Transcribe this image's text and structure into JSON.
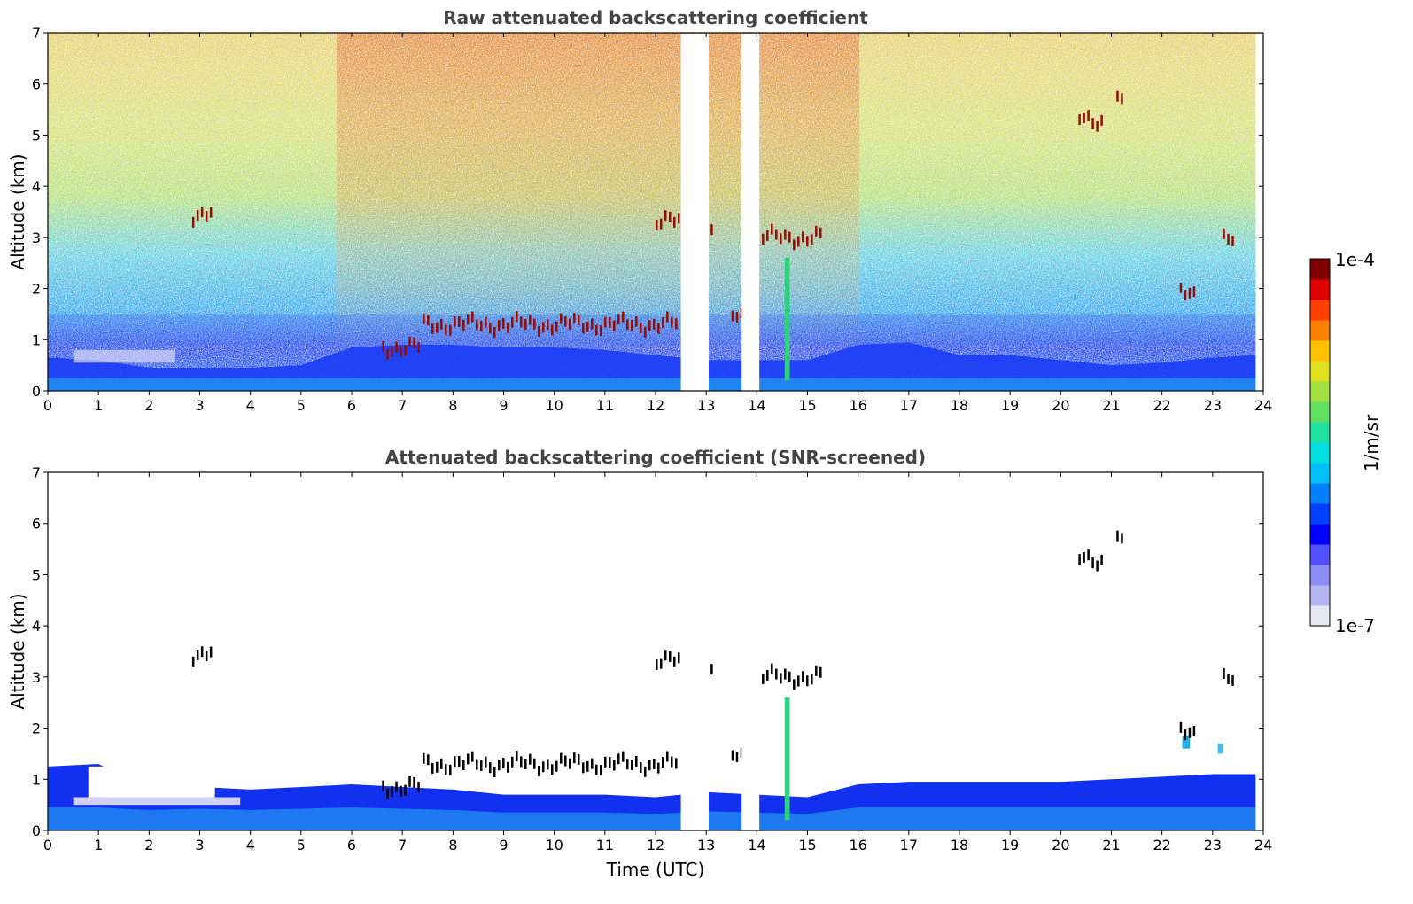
{
  "chart_data": [
    {
      "type": "heatmap",
      "title": "Raw attenuated backscattering coefficient",
      "xlabel": "",
      "ylabel": "Altitude (km)",
      "xlim": [
        0,
        24
      ],
      "ylim": [
        0,
        7
      ],
      "xticks": [
        "0",
        "1",
        "2",
        "3",
        "4",
        "5",
        "6",
        "7",
        "8",
        "9",
        "10",
        "11",
        "12",
        "13",
        "14",
        "15",
        "16",
        "17",
        "18",
        "19",
        "20",
        "21",
        "22",
        "23",
        "24"
      ],
      "yticks": [
        "0",
        "1",
        "2",
        "3",
        "4",
        "5",
        "6",
        "7"
      ],
      "data_gaps_utc": [
        [
          12.5,
          13.05
        ],
        [
          13.7,
          14.05
        ],
        [
          23.85,
          24
        ]
      ],
      "boundary_layer_top_km": [
        {
          "t": 0,
          "h": 0.65
        },
        {
          "t": 1,
          "h": 0.6
        },
        {
          "t": 2,
          "h": 0.45
        },
        {
          "t": 3,
          "h": 0.45
        },
        {
          "t": 4,
          "h": 0.45
        },
        {
          "t": 5,
          "h": 0.5
        },
        {
          "t": 6,
          "h": 0.85
        },
        {
          "t": 7,
          "h": 0.9
        },
        {
          "t": 8,
          "h": 0.9
        },
        {
          "t": 9,
          "h": 0.85
        },
        {
          "t": 10,
          "h": 0.85
        },
        {
          "t": 11,
          "h": 0.8
        },
        {
          "t": 12,
          "h": 0.7
        },
        {
          "t": 13,
          "h": 0.6
        },
        {
          "t": 14,
          "h": 0.6
        },
        {
          "t": 15,
          "h": 0.6
        },
        {
          "t": 16,
          "h": 0.9
        },
        {
          "t": 17,
          "h": 0.95
        },
        {
          "t": 18,
          "h": 0.7
        },
        {
          "t": 19,
          "h": 0.7
        },
        {
          "t": 20,
          "h": 0.6
        },
        {
          "t": 21,
          "h": 0.5
        },
        {
          "t": 22,
          "h": 0.55
        },
        {
          "t": 23,
          "h": 0.65
        },
        {
          "t": 23.85,
          "h": 0.7
        }
      ],
      "cloud_features": [
        {
          "t0": 2.85,
          "t1": 3.2,
          "h": 3.45
        },
        {
          "t0": 6.6,
          "t1": 7.3,
          "h": 0.85
        },
        {
          "t0": 7.4,
          "t1": 12.4,
          "h": 1.3
        },
        {
          "t0": 12.0,
          "t1": 12.5,
          "h": 3.3
        },
        {
          "t0": 13.0,
          "t1": 13.15,
          "h": 3.05
        },
        {
          "t0": 13.5,
          "t1": 13.7,
          "h": 1.5
        },
        {
          "t0": 14.1,
          "t1": 15.3,
          "h": 3.0
        },
        {
          "t0": 20.35,
          "t1": 20.8,
          "h": 5.3
        },
        {
          "t0": 21.1,
          "t1": 21.2,
          "h": 5.65
        },
        {
          "t0": 22.35,
          "t1": 22.65,
          "h": 1.9
        },
        {
          "t0": 23.2,
          "t1": 23.45,
          "h": 2.92
        }
      ]
    },
    {
      "type": "heatmap",
      "title": "Attenuated backscattering coefficient (SNR-screened)",
      "xlabel": "Time (UTC)",
      "ylabel": "Altitude (km)",
      "xlim": [
        0,
        24
      ],
      "ylim": [
        0,
        7
      ],
      "xticks": [
        "0",
        "1",
        "2",
        "3",
        "4",
        "5",
        "6",
        "7",
        "8",
        "9",
        "10",
        "11",
        "12",
        "13",
        "14",
        "15",
        "16",
        "17",
        "18",
        "19",
        "20",
        "21",
        "22",
        "23",
        "24"
      ],
      "yticks": [
        "0",
        "1",
        "2",
        "3",
        "4",
        "5",
        "6",
        "7"
      ],
      "data_gaps_utc": [
        [
          12.5,
          13.05
        ],
        [
          13.7,
          14.05
        ],
        [
          23.85,
          24
        ]
      ],
      "screened_top_km": [
        {
          "t": 0,
          "h": 1.25
        },
        {
          "t": 1,
          "h": 1.3
        },
        {
          "t": 2,
          "h": 0.8
        },
        {
          "t": 3,
          "h": 0.85
        },
        {
          "t": 4,
          "h": 0.8
        },
        {
          "t": 5,
          "h": 0.85
        },
        {
          "t": 6,
          "h": 0.9
        },
        {
          "t": 7,
          "h": 0.85
        },
        {
          "t": 8,
          "h": 0.8
        },
        {
          "t": 9,
          "h": 0.7
        },
        {
          "t": 10,
          "h": 0.7
        },
        {
          "t": 11,
          "h": 0.7
        },
        {
          "t": 12,
          "h": 0.65
        },
        {
          "t": 13,
          "h": 0.75
        },
        {
          "t": 14,
          "h": 0.7
        },
        {
          "t": 15,
          "h": 0.65
        },
        {
          "t": 16,
          "h": 0.9
        },
        {
          "t": 17,
          "h": 0.95
        },
        {
          "t": 18,
          "h": 0.95
        },
        {
          "t": 19,
          "h": 0.95
        },
        {
          "t": 20,
          "h": 0.95
        },
        {
          "t": 21,
          "h": 1.0
        },
        {
          "t": 22,
          "h": 1.05
        },
        {
          "t": 23,
          "h": 1.1
        },
        {
          "t": 23.85,
          "h": 1.1
        }
      ]
    }
  ],
  "colorbar": {
    "max_label": "1e-4",
    "min_label": "1e-7",
    "unit_label": "1/m/sr",
    "colors": [
      "#e6e6f5",
      "#b4b4f0",
      "#8c8cf5",
      "#5050ff",
      "#0000ff",
      "#0040ff",
      "#0080ff",
      "#00bfff",
      "#00e0e0",
      "#20e0a0",
      "#60e060",
      "#a0e040",
      "#e0e020",
      "#ffc000",
      "#ff8000",
      "#ff4000",
      "#e00000",
      "#800000"
    ]
  }
}
